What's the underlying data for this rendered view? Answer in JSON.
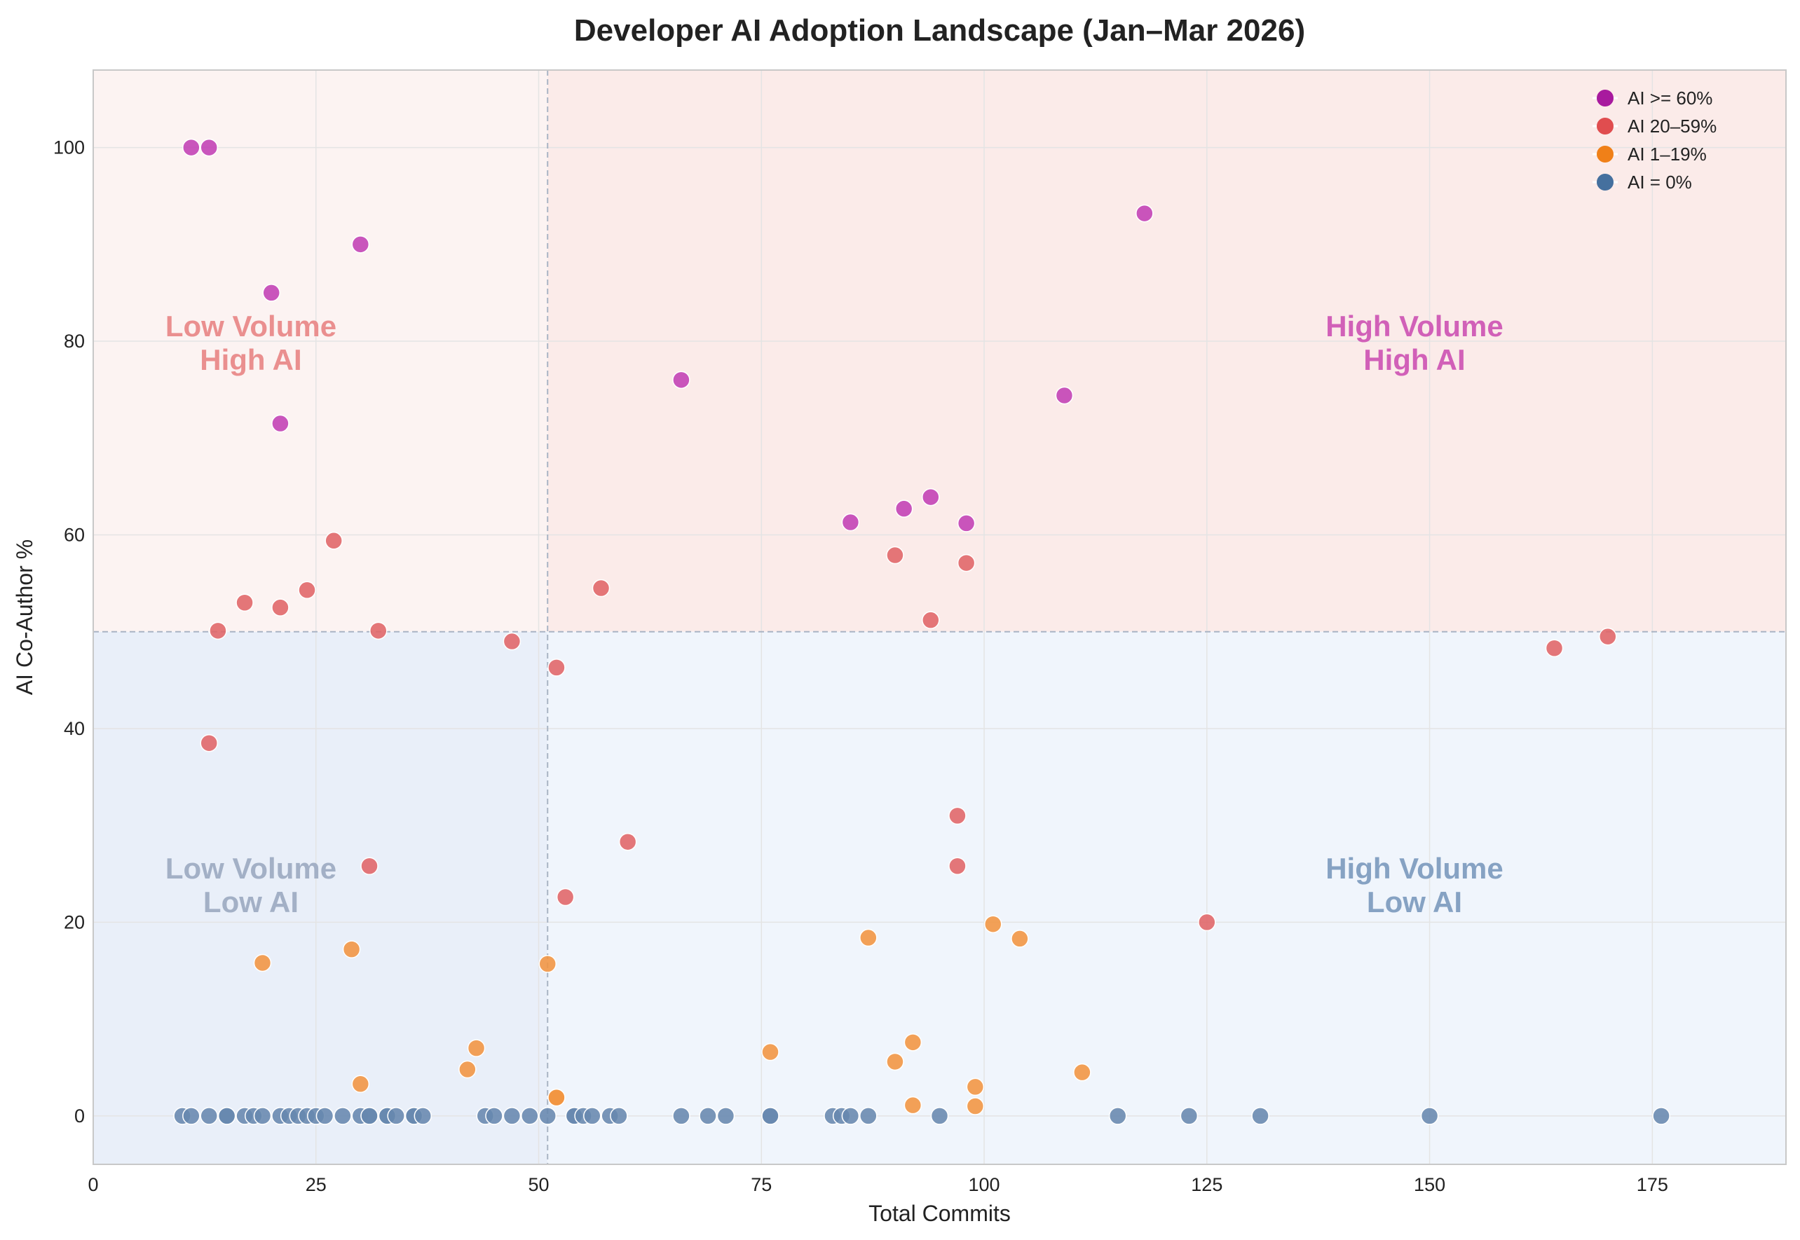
{
  "chart_data": {
    "type": "scatter",
    "title": "Developer AI Adoption Landscape (Jan–Mar 2026)",
    "xlabel": "Total Commits",
    "ylabel": "AI Co-Author %",
    "xlim": [
      0,
      190
    ],
    "ylim": [
      -5,
      108
    ],
    "xticks": [
      0,
      25,
      50,
      75,
      100,
      125,
      150,
      175
    ],
    "yticks": [
      0,
      20,
      40,
      60,
      80,
      100
    ],
    "grid": true,
    "legend_placement": "top-right",
    "threshold_x": 51,
    "threshold_y": 50,
    "quadrant_labels": {
      "top_left": [
        "Low Volume",
        "High AI"
      ],
      "top_right": [
        "High Volume",
        "High AI"
      ],
      "bottom_left": [
        "Low Volume",
        "Low AI"
      ],
      "bottom_right": [
        "High Volume",
        "Low AI"
      ]
    },
    "quadrant_colors": {
      "top_left": "#fcf3f2",
      "top_right": "#fbebe9",
      "bottom_left": "#e9eff9",
      "bottom_right": "#f0f5fc"
    },
    "quadrant_label_colors": {
      "top_left": "#ea8f8f",
      "top_right": "#d160b8",
      "bottom_left": "#a3b0c6",
      "bottom_right": "#86a2c3"
    },
    "series": [
      {
        "name": "AI >= 60%",
        "color": "#c23fb4",
        "legend_color": "#a81a9e",
        "points": [
          [
            11,
            100
          ],
          [
            13,
            100
          ],
          [
            30,
            90
          ],
          [
            20,
            85
          ],
          [
            21,
            71.5
          ],
          [
            66,
            76
          ],
          [
            85,
            61.3
          ],
          [
            91,
            62.7
          ],
          [
            94,
            63.9
          ],
          [
            98,
            61.2
          ],
          [
            109,
            74.4
          ],
          [
            118,
            93.2
          ]
        ]
      },
      {
        "name": "AI 20–59%",
        "color": "#e06467",
        "legend_color": "#e04d4f",
        "points": [
          [
            27,
            59.4
          ],
          [
            17,
            53
          ],
          [
            21,
            52.5
          ],
          [
            24,
            54.3
          ],
          [
            14,
            50.1
          ],
          [
            32,
            50.1
          ],
          [
            13,
            38.5
          ],
          [
            57,
            54.5
          ],
          [
            47,
            49
          ],
          [
            52,
            46.3
          ],
          [
            31,
            25.8
          ],
          [
            53,
            22.6
          ],
          [
            60,
            28.3
          ],
          [
            90,
            57.9
          ],
          [
            98,
            57.1
          ],
          [
            94,
            51.2
          ],
          [
            97,
            31
          ],
          [
            97,
            25.8
          ],
          [
            125,
            20
          ],
          [
            164,
            48.3
          ],
          [
            170,
            49.5
          ]
        ]
      },
      {
        "name": "AI 1–19%",
        "color": "#f19440",
        "legend_color": "#f08018",
        "points": [
          [
            19,
            15.8
          ],
          [
            29,
            17.2
          ],
          [
            30,
            3.3
          ],
          [
            42,
            4.8
          ],
          [
            43,
            7
          ],
          [
            51,
            15.7
          ],
          [
            52,
            1.9
          ],
          [
            52,
            1.9
          ],
          [
            76,
            6.6
          ],
          [
            87,
            18.4
          ],
          [
            90,
            5.6
          ],
          [
            92,
            7.6
          ],
          [
            92,
            1.1
          ],
          [
            99,
            3
          ],
          [
            99,
            1
          ],
          [
            101,
            19.8
          ],
          [
            104,
            18.3
          ],
          [
            111,
            4.5
          ]
        ]
      },
      {
        "name": "AI = 0%",
        "color": "#6787ae",
        "legend_color": "#45709e",
        "points": [
          [
            10,
            0
          ],
          [
            11,
            0
          ],
          [
            13,
            0
          ],
          [
            15,
            0
          ],
          [
            15,
            0
          ],
          [
            17,
            0
          ],
          [
            18,
            0
          ],
          [
            19,
            0
          ],
          [
            21,
            0
          ],
          [
            22,
            0
          ],
          [
            23,
            0
          ],
          [
            24,
            0
          ],
          [
            25,
            0
          ],
          [
            26,
            0
          ],
          [
            28,
            0
          ],
          [
            30,
            0
          ],
          [
            31,
            0
          ],
          [
            31,
            0
          ],
          [
            33,
            0
          ],
          [
            33,
            0
          ],
          [
            34,
            0
          ],
          [
            36,
            0
          ],
          [
            36,
            0
          ],
          [
            37,
            0
          ],
          [
            44,
            0
          ],
          [
            45,
            0
          ],
          [
            47,
            0
          ],
          [
            49,
            0
          ],
          [
            51,
            0
          ],
          [
            54,
            0
          ],
          [
            54,
            0
          ],
          [
            55,
            0
          ],
          [
            56,
            0
          ],
          [
            58,
            0
          ],
          [
            59,
            0
          ],
          [
            66,
            0
          ],
          [
            69,
            0
          ],
          [
            71,
            0
          ],
          [
            76,
            0
          ],
          [
            76,
            0
          ],
          [
            83,
            0
          ],
          [
            84,
            0
          ],
          [
            85,
            0
          ],
          [
            87,
            0
          ],
          [
            95,
            0
          ],
          [
            115,
            0
          ],
          [
            123,
            0
          ],
          [
            131,
            0
          ],
          [
            150,
            0
          ],
          [
            176,
            0
          ]
        ]
      }
    ]
  }
}
